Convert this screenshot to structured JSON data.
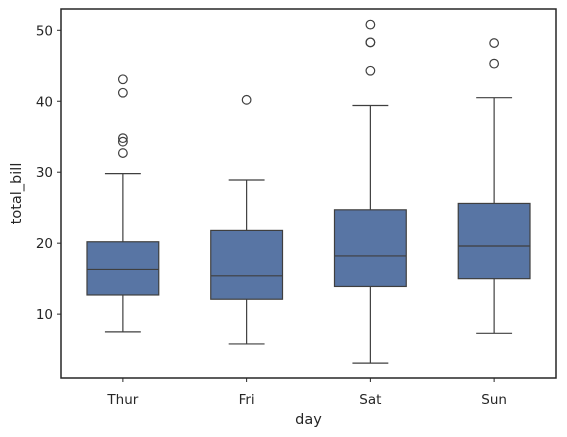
{
  "chart_data": {
    "type": "box",
    "xlabel": "day",
    "ylabel": "total_bill",
    "ylim": [
      1.0,
      53.0
    ],
    "yticks": [
      10,
      20,
      30,
      40,
      50
    ],
    "grid": false,
    "legend": "none",
    "box_color": "#5875a4",
    "line_color": "#3f3f3f",
    "categories": [
      "Thur",
      "Fri",
      "Sat",
      "Sun"
    ],
    "boxes": [
      {
        "category": "Thur",
        "whisker_low": 7.5,
        "q1": 12.7,
        "median": 16.3,
        "q3": 20.2,
        "whisker_high": 29.8,
        "outliers": [
          32.7,
          34.3,
          34.8,
          41.2,
          43.1
        ]
      },
      {
        "category": "Fri",
        "whisker_low": 5.8,
        "q1": 12.1,
        "median": 15.4,
        "q3": 21.8,
        "whisker_high": 28.9,
        "outliers": [
          40.2
        ]
      },
      {
        "category": "Sat",
        "whisker_low": 3.1,
        "q1": 13.9,
        "median": 18.2,
        "q3": 24.7,
        "whisker_high": 39.4,
        "outliers": [
          44.3,
          48.3,
          48.3,
          50.8
        ]
      },
      {
        "category": "Sun",
        "whisker_low": 7.3,
        "q1": 15.0,
        "median": 19.6,
        "q3": 25.6,
        "whisker_high": 40.5,
        "outliers": [
          45.3,
          48.2
        ]
      }
    ]
  }
}
